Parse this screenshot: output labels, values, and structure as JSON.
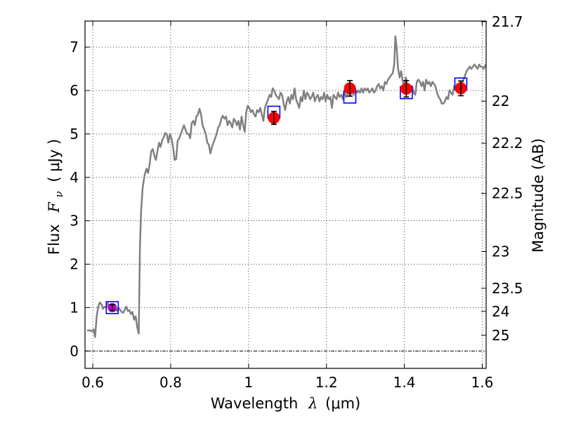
{
  "chart_data": {
    "type": "line",
    "xlabel": {
      "prefix": "Wavelength",
      "symbol": "λ",
      "unit": "(μm)"
    },
    "ylabel": {
      "prefix": "Flux",
      "symbol": "F",
      "sub": "ν",
      "unit": "( μJy )"
    },
    "y2label": "Magnitude (AB)",
    "xlim": [
      0.58,
      1.61
    ],
    "ylim": [
      -0.4,
      7.6
    ],
    "x_ticks": [
      {
        "v": 0.6,
        "label": "0.6"
      },
      {
        "v": 0.8,
        "label": "0.8"
      },
      {
        "v": 1.0,
        "label": "1"
      },
      {
        "v": 1.2,
        "label": "1.2"
      },
      {
        "v": 1.4,
        "label": "1.4"
      },
      {
        "v": 1.6,
        "label": "1.6"
      }
    ],
    "y_ticks": [
      {
        "v": 0,
        "label": "0"
      },
      {
        "v": 1,
        "label": "1"
      },
      {
        "v": 2,
        "label": "2"
      },
      {
        "v": 3,
        "label": "3"
      },
      {
        "v": 4,
        "label": "4"
      },
      {
        "v": 5,
        "label": "5"
      },
      {
        "v": 6,
        "label": "6"
      },
      {
        "v": 7,
        "label": "7"
      }
    ],
    "y2_ticks": [
      {
        "mag": 21.7,
        "label": "21.7"
      },
      {
        "mag": 22,
        "label": "22"
      },
      {
        "mag": 22.2,
        "label": "22.2"
      },
      {
        "mag": 22.5,
        "label": "22.5"
      },
      {
        "mag": 23,
        "label": "23"
      },
      {
        "mag": 23.5,
        "label": "23.5"
      },
      {
        "mag": 24,
        "label": "24"
      },
      {
        "mag": 25,
        "label": "25"
      }
    ],
    "grid": true,
    "zero_line": true,
    "colors": {
      "spectrum": "#808080",
      "observed": "#ff0000",
      "observed_first": "#bf00bf",
      "model_box": "#0000ff",
      "errorbar": "#000000"
    },
    "spectrum": [
      [
        0.585,
        0.47
      ],
      [
        0.592,
        0.48
      ],
      [
        0.598,
        0.45
      ],
      [
        0.602,
        0.5
      ],
      [
        0.606,
        0.32
      ],
      [
        0.61,
        0.8
      ],
      [
        0.614,
        1.02
      ],
      [
        0.618,
        1.12
      ],
      [
        0.622,
        1.08
      ],
      [
        0.626,
        0.97
      ],
      [
        0.63,
        1.02
      ],
      [
        0.634,
        1.0
      ],
      [
        0.638,
        1.1
      ],
      [
        0.642,
        1.05
      ],
      [
        0.646,
        0.98
      ],
      [
        0.65,
        1.05
      ],
      [
        0.654,
        0.95
      ],
      [
        0.658,
        1.05
      ],
      [
        0.662,
        0.92
      ],
      [
        0.666,
        1.0
      ],
      [
        0.67,
        0.95
      ],
      [
        0.674,
        0.9
      ],
      [
        0.678,
        0.88
      ],
      [
        0.682,
        0.95
      ],
      [
        0.686,
        1.02
      ],
      [
        0.69,
        0.92
      ],
      [
        0.694,
        0.94
      ],
      [
        0.698,
        0.85
      ],
      [
        0.702,
        0.9
      ],
      [
        0.706,
        0.72
      ],
      [
        0.71,
        0.8
      ],
      [
        0.714,
        0.55
      ],
      [
        0.718,
        0.4
      ],
      [
        0.721,
        2.4
      ],
      [
        0.724,
        3.2
      ],
      [
        0.728,
        3.75
      ],
      [
        0.733,
        4.05
      ],
      [
        0.738,
        4.2
      ],
      [
        0.742,
        4.1
      ],
      [
        0.746,
        4.3
      ],
      [
        0.75,
        4.6
      ],
      [
        0.754,
        4.65
      ],
      [
        0.758,
        4.5
      ],
      [
        0.762,
        4.4
      ],
      [
        0.766,
        4.6
      ],
      [
        0.77,
        4.8
      ],
      [
        0.774,
        4.7
      ],
      [
        0.778,
        4.85
      ],
      [
        0.782,
        4.92
      ],
      [
        0.786,
        5.02
      ],
      [
        0.79,
        5.0
      ],
      [
        0.794,
        4.8
      ],
      [
        0.798,
        5.0
      ],
      [
        0.802,
        4.9
      ],
      [
        0.806,
        4.7
      ],
      [
        0.81,
        4.4
      ],
      [
        0.814,
        4.42
      ],
      [
        0.818,
        4.85
      ],
      [
        0.822,
        4.9
      ],
      [
        0.826,
        5.0
      ],
      [
        0.83,
        5.1
      ],
      [
        0.834,
        5.2
      ],
      [
        0.838,
        5.1
      ],
      [
        0.842,
        5.0
      ],
      [
        0.846,
        5.0
      ],
      [
        0.85,
        4.9
      ],
      [
        0.854,
        5.25
      ],
      [
        0.858,
        5.3
      ],
      [
        0.862,
        5.2
      ],
      [
        0.866,
        5.4
      ],
      [
        0.87,
        5.45
      ],
      [
        0.874,
        5.58
      ],
      [
        0.878,
        5.45
      ],
      [
        0.882,
        5.2
      ],
      [
        0.886,
        5.1
      ],
      [
        0.89,
        5.0
      ],
      [
        0.894,
        4.8
      ],
      [
        0.898,
        4.75
      ],
      [
        0.902,
        4.55
      ],
      [
        0.906,
        4.7
      ],
      [
        0.91,
        4.8
      ],
      [
        0.914,
        4.9
      ],
      [
        0.918,
        5.0
      ],
      [
        0.922,
        5.15
      ],
      [
        0.926,
        5.2
      ],
      [
        0.93,
        5.35
      ],
      [
        0.934,
        5.42
      ],
      [
        0.938,
        5.35
      ],
      [
        0.942,
        5.4
      ],
      [
        0.946,
        5.2
      ],
      [
        0.95,
        5.3
      ],
      [
        0.954,
        5.25
      ],
      [
        0.958,
        5.15
      ],
      [
        0.962,
        5.35
      ],
      [
        0.966,
        5.3
      ],
      [
        0.97,
        5.2
      ],
      [
        0.974,
        5.3
      ],
      [
        0.978,
        5.1
      ],
      [
        0.982,
        5.4
      ],
      [
        0.986,
        5.2
      ],
      [
        0.99,
        5.05
      ],
      [
        0.994,
        5.5
      ],
      [
        0.998,
        5.65
      ],
      [
        1.002,
        5.6
      ],
      [
        1.006,
        5.5
      ],
      [
        1.01,
        5.55
      ],
      [
        1.014,
        5.45
      ],
      [
        1.018,
        5.4
      ],
      [
        1.022,
        5.55
      ],
      [
        1.026,
        5.5
      ],
      [
        1.03,
        5.6
      ],
      [
        1.034,
        5.45
      ],
      [
        1.038,
        5.3
      ],
      [
        1.042,
        5.6
      ],
      [
        1.046,
        5.7
      ],
      [
        1.05,
        5.8
      ],
      [
        1.054,
        5.9
      ],
      [
        1.058,
        5.85
      ],
      [
        1.062,
        6.05
      ],
      [
        1.066,
        6.0
      ],
      [
        1.07,
        5.9
      ],
      [
        1.074,
        5.85
      ],
      [
        1.078,
        5.8
      ],
      [
        1.082,
        5.95
      ],
      [
        1.086,
        5.9
      ],
      [
        1.09,
        5.7
      ],
      [
        1.094,
        5.55
      ],
      [
        1.098,
        5.75
      ],
      [
        1.102,
        5.85
      ],
      [
        1.106,
        5.7
      ],
      [
        1.11,
        5.9
      ],
      [
        1.114,
        5.8
      ],
      [
        1.118,
        6.05
      ],
      [
        1.122,
        5.8
      ],
      [
        1.126,
        5.7
      ],
      [
        1.13,
        5.6
      ],
      [
        1.134,
        5.85
      ],
      [
        1.138,
        5.75
      ],
      [
        1.142,
        6.0
      ],
      [
        1.146,
        5.8
      ],
      [
        1.15,
        5.95
      ],
      [
        1.154,
        5.9
      ],
      [
        1.158,
        5.8
      ],
      [
        1.162,
        5.85
      ],
      [
        1.166,
        5.95
      ],
      [
        1.17,
        5.75
      ],
      [
        1.174,
        5.85
      ],
      [
        1.178,
        5.9
      ],
      [
        1.182,
        5.75
      ],
      [
        1.186,
        5.85
      ],
      [
        1.19,
        5.8
      ],
      [
        1.194,
        5.95
      ],
      [
        1.198,
        5.75
      ],
      [
        1.202,
        5.9
      ],
      [
        1.206,
        5.8
      ],
      [
        1.21,
        5.85
      ],
      [
        1.214,
        5.6
      ],
      [
        1.218,
        5.9
      ],
      [
        1.222,
        5.85
      ],
      [
        1.226,
        5.8
      ],
      [
        1.23,
        5.95
      ],
      [
        1.234,
        5.85
      ],
      [
        1.238,
        5.9
      ],
      [
        1.242,
        5.8
      ],
      [
        1.246,
        6.0
      ],
      [
        1.25,
        5.85
      ],
      [
        1.254,
        5.9
      ],
      [
        1.258,
        6.0
      ],
      [
        1.262,
        5.9
      ],
      [
        1.266,
        6.0
      ],
      [
        1.27,
        5.9
      ],
      [
        1.274,
        6.05
      ],
      [
        1.278,
        5.95
      ],
      [
        1.282,
        6.0
      ],
      [
        1.286,
        5.95
      ],
      [
        1.29,
        6.05
      ],
      [
        1.294,
        5.95
      ],
      [
        1.298,
        6.05
      ],
      [
        1.302,
        6.0
      ],
      [
        1.306,
        6.05
      ],
      [
        1.31,
        5.95
      ],
      [
        1.314,
        6.0
      ],
      [
        1.318,
        6.05
      ],
      [
        1.322,
        5.95
      ],
      [
        1.326,
        6.0
      ],
      [
        1.33,
        6.1
      ],
      [
        1.334,
        6.15
      ],
      [
        1.338,
        6.05
      ],
      [
        1.342,
        6.1
      ],
      [
        1.346,
        6.0
      ],
      [
        1.35,
        6.2
      ],
      [
        1.354,
        6.15
      ],
      [
        1.358,
        6.25
      ],
      [
        1.362,
        6.3
      ],
      [
        1.366,
        6.35
      ],
      [
        1.37,
        6.4
      ],
      [
        1.374,
        6.6
      ],
      [
        1.377,
        7.25
      ],
      [
        1.38,
        7.0
      ],
      [
        1.384,
        6.5
      ],
      [
        1.388,
        6.3
      ],
      [
        1.392,
        6.45
      ],
      [
        1.396,
        6.2
      ],
      [
        1.4,
        6.15
      ],
      [
        1.404,
        6.3
      ],
      [
        1.408,
        6.1
      ],
      [
        1.412,
        6.0
      ],
      [
        1.416,
        6.05
      ],
      [
        1.42,
        6.1
      ],
      [
        1.424,
        5.95
      ],
      [
        1.428,
        5.9
      ],
      [
        1.432,
        6.2
      ],
      [
        1.436,
        6.25
      ],
      [
        1.44,
        6.2
      ],
      [
        1.444,
        6.1
      ],
      [
        1.448,
        6.2
      ],
      [
        1.452,
        6.0
      ],
      [
        1.456,
        6.25
      ],
      [
        1.46,
        6.15
      ],
      [
        1.464,
        6.2
      ],
      [
        1.468,
        6.1
      ],
      [
        1.472,
        6.2
      ],
      [
        1.476,
        6.15
      ],
      [
        1.48,
        6.1
      ],
      [
        1.484,
        5.95
      ],
      [
        1.488,
        5.85
      ],
      [
        1.492,
        5.8
      ],
      [
        1.496,
        5.7
      ],
      [
        1.5,
        5.7
      ],
      [
        1.504,
        5.75
      ],
      [
        1.508,
        5.85
      ],
      [
        1.512,
        5.8
      ],
      [
        1.516,
        6.0
      ],
      [
        1.52,
        5.95
      ],
      [
        1.524,
        5.9
      ],
      [
        1.528,
        6.1
      ],
      [
        1.532,
        6.05
      ],
      [
        1.536,
        6.15
      ],
      [
        1.54,
        6.1
      ],
      [
        1.544,
        6.2
      ],
      [
        1.548,
        6.15
      ],
      [
        1.552,
        6.25
      ],
      [
        1.556,
        6.35
      ],
      [
        1.56,
        6.45
      ],
      [
        1.564,
        6.5
      ],
      [
        1.568,
        6.55
      ],
      [
        1.572,
        6.5
      ],
      [
        1.576,
        6.55
      ],
      [
        1.58,
        6.6
      ],
      [
        1.584,
        6.55
      ],
      [
        1.588,
        6.5
      ],
      [
        1.592,
        6.6
      ],
      [
        1.596,
        6.55
      ],
      [
        1.6,
        6.55
      ],
      [
        1.604,
        6.5
      ],
      [
        1.609,
        6.6
      ]
    ],
    "observed": [
      {
        "x": 0.65,
        "y": 1.0,
        "err": 0.07
      },
      {
        "x": 1.065,
        "y": 5.37,
        "err": 0.15
      },
      {
        "x": 1.26,
        "y": 6.05,
        "err": 0.18
      },
      {
        "x": 1.405,
        "y": 6.04,
        "err": 0.19
      },
      {
        "x": 1.545,
        "y": 6.05,
        "err": 0.17
      }
    ],
    "model": [
      {
        "x": 0.65,
        "y": 1.0
      },
      {
        "x": 1.065,
        "y": 5.5
      },
      {
        "x": 1.26,
        "y": 5.85
      },
      {
        "x": 1.405,
        "y": 5.95
      },
      {
        "x": 1.545,
        "y": 6.15
      }
    ]
  }
}
